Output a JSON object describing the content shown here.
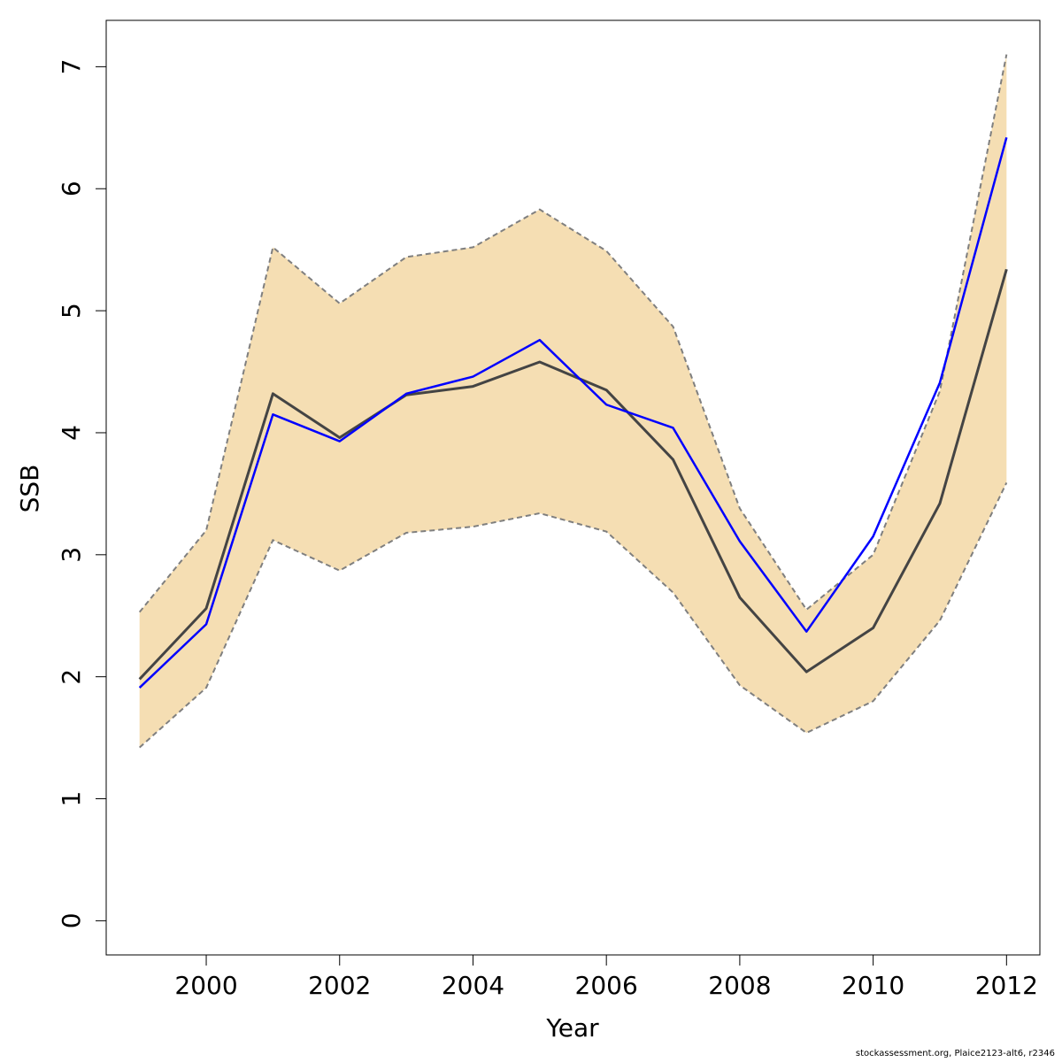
{
  "chart_data": {
    "type": "line",
    "title": "",
    "xlabel": "Year",
    "ylabel": "SSB",
    "x": [
      1999,
      2000,
      2001,
      2002,
      2003,
      2004,
      2005,
      2006,
      2007,
      2008,
      2009,
      2010,
      2011,
      2012
    ],
    "xlim": [
      1998.5,
      2012.5
    ],
    "ylim": [
      -0.28,
      7.38
    ],
    "x_ticks": [
      2000,
      2002,
      2004,
      2006,
      2008,
      2010,
      2012
    ],
    "y_ticks": [
      0,
      1,
      2,
      3,
      4,
      5,
      6,
      7
    ],
    "grid": false,
    "legend": "none",
    "band": {
      "upper": [
        2.53,
        3.2,
        5.52,
        5.06,
        5.44,
        5.52,
        5.83,
        5.49,
        4.87,
        3.38,
        2.55,
        3.0,
        4.34,
        7.1
      ],
      "lower": [
        1.42,
        1.91,
        3.12,
        2.87,
        3.18,
        3.23,
        3.34,
        3.19,
        2.69,
        1.93,
        1.54,
        1.8,
        2.46,
        3.59
      ],
      "fill_color": "#F5DEB3",
      "edge_color": "#7F7F7F"
    },
    "series": [
      {
        "values": [
          1.98,
          2.56,
          4.32,
          3.96,
          4.31,
          4.38,
          4.58,
          4.35,
          3.78,
          2.65,
          2.04,
          2.4,
          3.42,
          5.34
        ],
        "color": "#444444"
      },
      {
        "values": [
          1.91,
          2.43,
          4.15,
          3.93,
          4.32,
          4.46,
          4.76,
          4.23,
          4.04,
          3.11,
          2.37,
          3.15,
          4.41,
          6.42
        ],
        "color": "#0000FF"
      }
    ]
  },
  "footer": "stockassessment.org, Plaice2123-alt6, r2346"
}
